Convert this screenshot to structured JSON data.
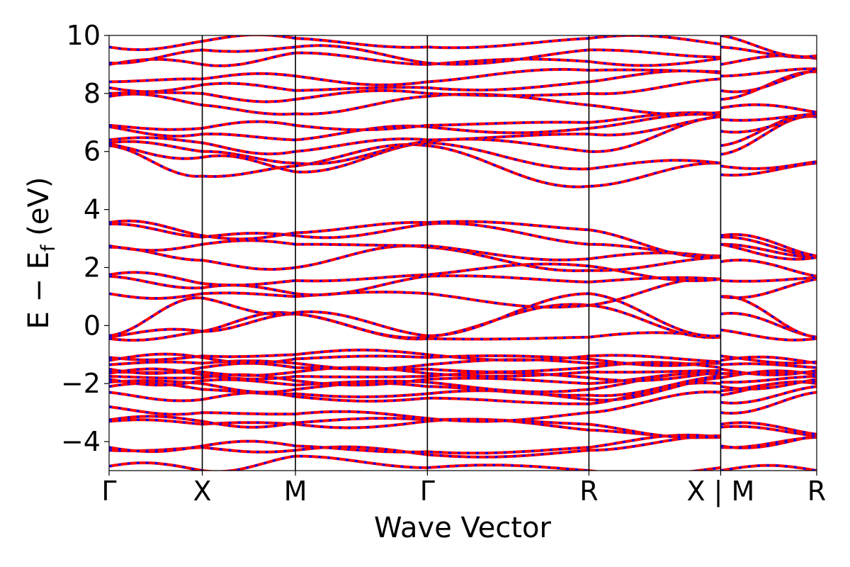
{
  "chart_data": {
    "type": "line",
    "title": "",
    "xlabel": "Wave Vector",
    "ylabel_main": "E − E",
    "ylabel_sub": "f",
    "ylabel_unit": "(eV)",
    "ylim": [
      -5,
      10
    ],
    "xlim": [
      0,
      1
    ],
    "yticks": [
      {
        "v": -4,
        "label": "−4"
      },
      {
        "v": -2,
        "label": "−2"
      },
      {
        "v": 0,
        "label": "0"
      },
      {
        "v": 2,
        "label": "2"
      },
      {
        "v": 4,
        "label": "4"
      },
      {
        "v": 6,
        "label": "6"
      },
      {
        "v": 8,
        "label": "8"
      },
      {
        "v": 10,
        "label": "10"
      }
    ],
    "kpoints": [
      {
        "pos": 0.0,
        "label": "Γ"
      },
      {
        "pos": 0.1317,
        "label": "X"
      },
      {
        "pos": 0.2634,
        "label": "M"
      },
      {
        "pos": 0.4498,
        "label": "Γ"
      },
      {
        "pos": 0.6781,
        "label": "R"
      },
      {
        "pos": 0.8643,
        "label": "X | M"
      },
      {
        "pos": 1.0,
        "label": "R"
      }
    ],
    "segment_breaks": [
      0.8643
    ],
    "series_colors": {
      "method_a": "#ff0000",
      "method_b": "#0000ff"
    },
    "bands": [
      [
        -4.85,
        -5.0,
        -4.5,
        -4.9,
        -5.0,
        -4.9,
        -5.0,
        -5.0
      ],
      [
        -4.3,
        -4.2,
        -4.3,
        -4.45,
        -4.3,
        -3.8,
        -4.2,
        -3.85
      ],
      [
        -4.2,
        -4.15,
        -4.15,
        -4.35,
        -4.2,
        -3.85,
        -4.15,
        -3.8
      ],
      [
        -3.3,
        -3.4,
        -3.4,
        -3.3,
        -3.6,
        -3.85,
        -3.5,
        -3.8
      ],
      [
        -3.25,
        -3.3,
        -3.35,
        -3.25,
        -3.4,
        -3.8,
        -3.4,
        -3.75
      ],
      [
        -2.8,
        -3.0,
        -3.05,
        -3.2,
        -3.0,
        -2.3,
        -3.0,
        -2.3
      ],
      [
        -2.3,
        -2.55,
        -2.45,
        -2.5,
        -2.7,
        -2.0,
        -2.65,
        -2.1
      ],
      [
        -2.1,
        -2.2,
        -2.35,
        -2.35,
        -2.55,
        -1.8,
        -2.4,
        -2.0
      ],
      [
        -1.95,
        -2.0,
        -2.2,
        -2.1,
        -2.4,
        -1.75,
        -2.25,
        -1.95
      ],
      [
        -1.85,
        -1.9,
        -2.05,
        -1.95,
        -2.2,
        -1.7,
        -2.1,
        -1.85
      ],
      [
        -1.75,
        -1.8,
        -1.9,
        -1.85,
        -2.0,
        -1.65,
        -1.95,
        -1.75
      ],
      [
        -1.65,
        -1.7,
        -1.75,
        -1.75,
        -1.8,
        -1.6,
        -1.8,
        -1.7
      ],
      [
        -1.6,
        -1.6,
        -1.6,
        -1.65,
        -1.6,
        -1.55,
        -1.65,
        -1.6
      ],
      [
        -1.5,
        -1.45,
        -1.45,
        -1.5,
        -1.45,
        -1.45,
        -1.5,
        -1.55
      ],
      [
        -1.35,
        -1.3,
        -1.3,
        -1.35,
        -1.3,
        -1.3,
        -1.35,
        -1.45
      ],
      [
        -1.2,
        -1.1,
        -1.15,
        -1.1,
        -1.15,
        -1.25,
        -1.2,
        -1.3
      ],
      [
        -1.1,
        -1.05,
        -1.0,
        -1.0,
        -1.05,
        -1.25,
        -1.05,
        -1.25
      ],
      [
        -0.45,
        -0.2,
        0.4,
        -0.45,
        -0.4,
        -0.4,
        -0.15,
        -0.45
      ],
      [
        -0.4,
        -0.2,
        0.4,
        -0.4,
        0.7,
        -0.4,
        0.4,
        -0.4
      ],
      [
        -0.35,
        0.95,
        0.45,
        -0.35,
        1.1,
        -0.35,
        1.0,
        -0.4
      ],
      [
        1.1,
        1.1,
        1.0,
        1.1,
        0.7,
        1.6,
        1.0,
        1.6
      ],
      [
        1.7,
        1.3,
        1.1,
        1.7,
        1.5,
        1.6,
        1.55,
        1.65
      ],
      [
        1.75,
        1.45,
        1.55,
        1.75,
        2.05,
        1.6,
        2.2,
        1.7
      ],
      [
        2.7,
        2.25,
        2.0,
        2.7,
        1.9,
        2.35,
        2.8,
        2.35
      ],
      [
        2.75,
        2.8,
        2.8,
        2.75,
        2.3,
        2.35,
        2.8,
        2.35
      ],
      [
        3.5,
        3.05,
        3.1,
        3.5,
        2.8,
        2.4,
        3.05,
        2.4
      ],
      [
        3.55,
        3.1,
        3.2,
        3.55,
        3.3,
        2.4,
        3.1,
        2.4
      ],
      [
        6.2,
        5.15,
        5.5,
        6.2,
        4.8,
        5.6,
        5.2,
        5.6
      ],
      [
        6.25,
        5.8,
        5.3,
        6.3,
        5.4,
        5.6,
        5.5,
        5.65
      ],
      [
        6.3,
        6.0,
        5.6,
        6.35,
        6.0,
        7.2,
        5.9,
        7.2
      ],
      [
        6.4,
        6.3,
        6.0,
        6.4,
        6.6,
        7.2,
        6.2,
        7.25
      ],
      [
        6.85,
        6.6,
        6.4,
        6.85,
        6.8,
        7.25,
        6.7,
        7.3
      ],
      [
        6.9,
        6.8,
        6.9,
        6.9,
        7.0,
        7.3,
        7.1,
        7.3
      ],
      [
        7.9,
        7.6,
        7.3,
        7.9,
        7.6,
        7.35,
        7.5,
        7.35
      ],
      [
        8.0,
        8.0,
        7.8,
        8.0,
        8.0,
        8.5,
        7.8,
        8.75
      ],
      [
        8.2,
        8.3,
        8.1,
        8.2,
        8.4,
        8.7,
        8.1,
        8.8
      ],
      [
        8.4,
        8.5,
        8.6,
        8.4,
        8.8,
        8.75,
        8.6,
        8.85
      ],
      [
        9.0,
        9.0,
        9.4,
        9.0,
        9.1,
        9.2,
        9.0,
        9.2
      ],
      [
        9.05,
        9.5,
        9.6,
        9.05,
        9.5,
        9.25,
        9.6,
        9.25
      ],
      [
        9.6,
        9.8,
        9.9,
        9.6,
        9.9,
        9.7,
        10.0,
        9.3
      ]
    ]
  }
}
